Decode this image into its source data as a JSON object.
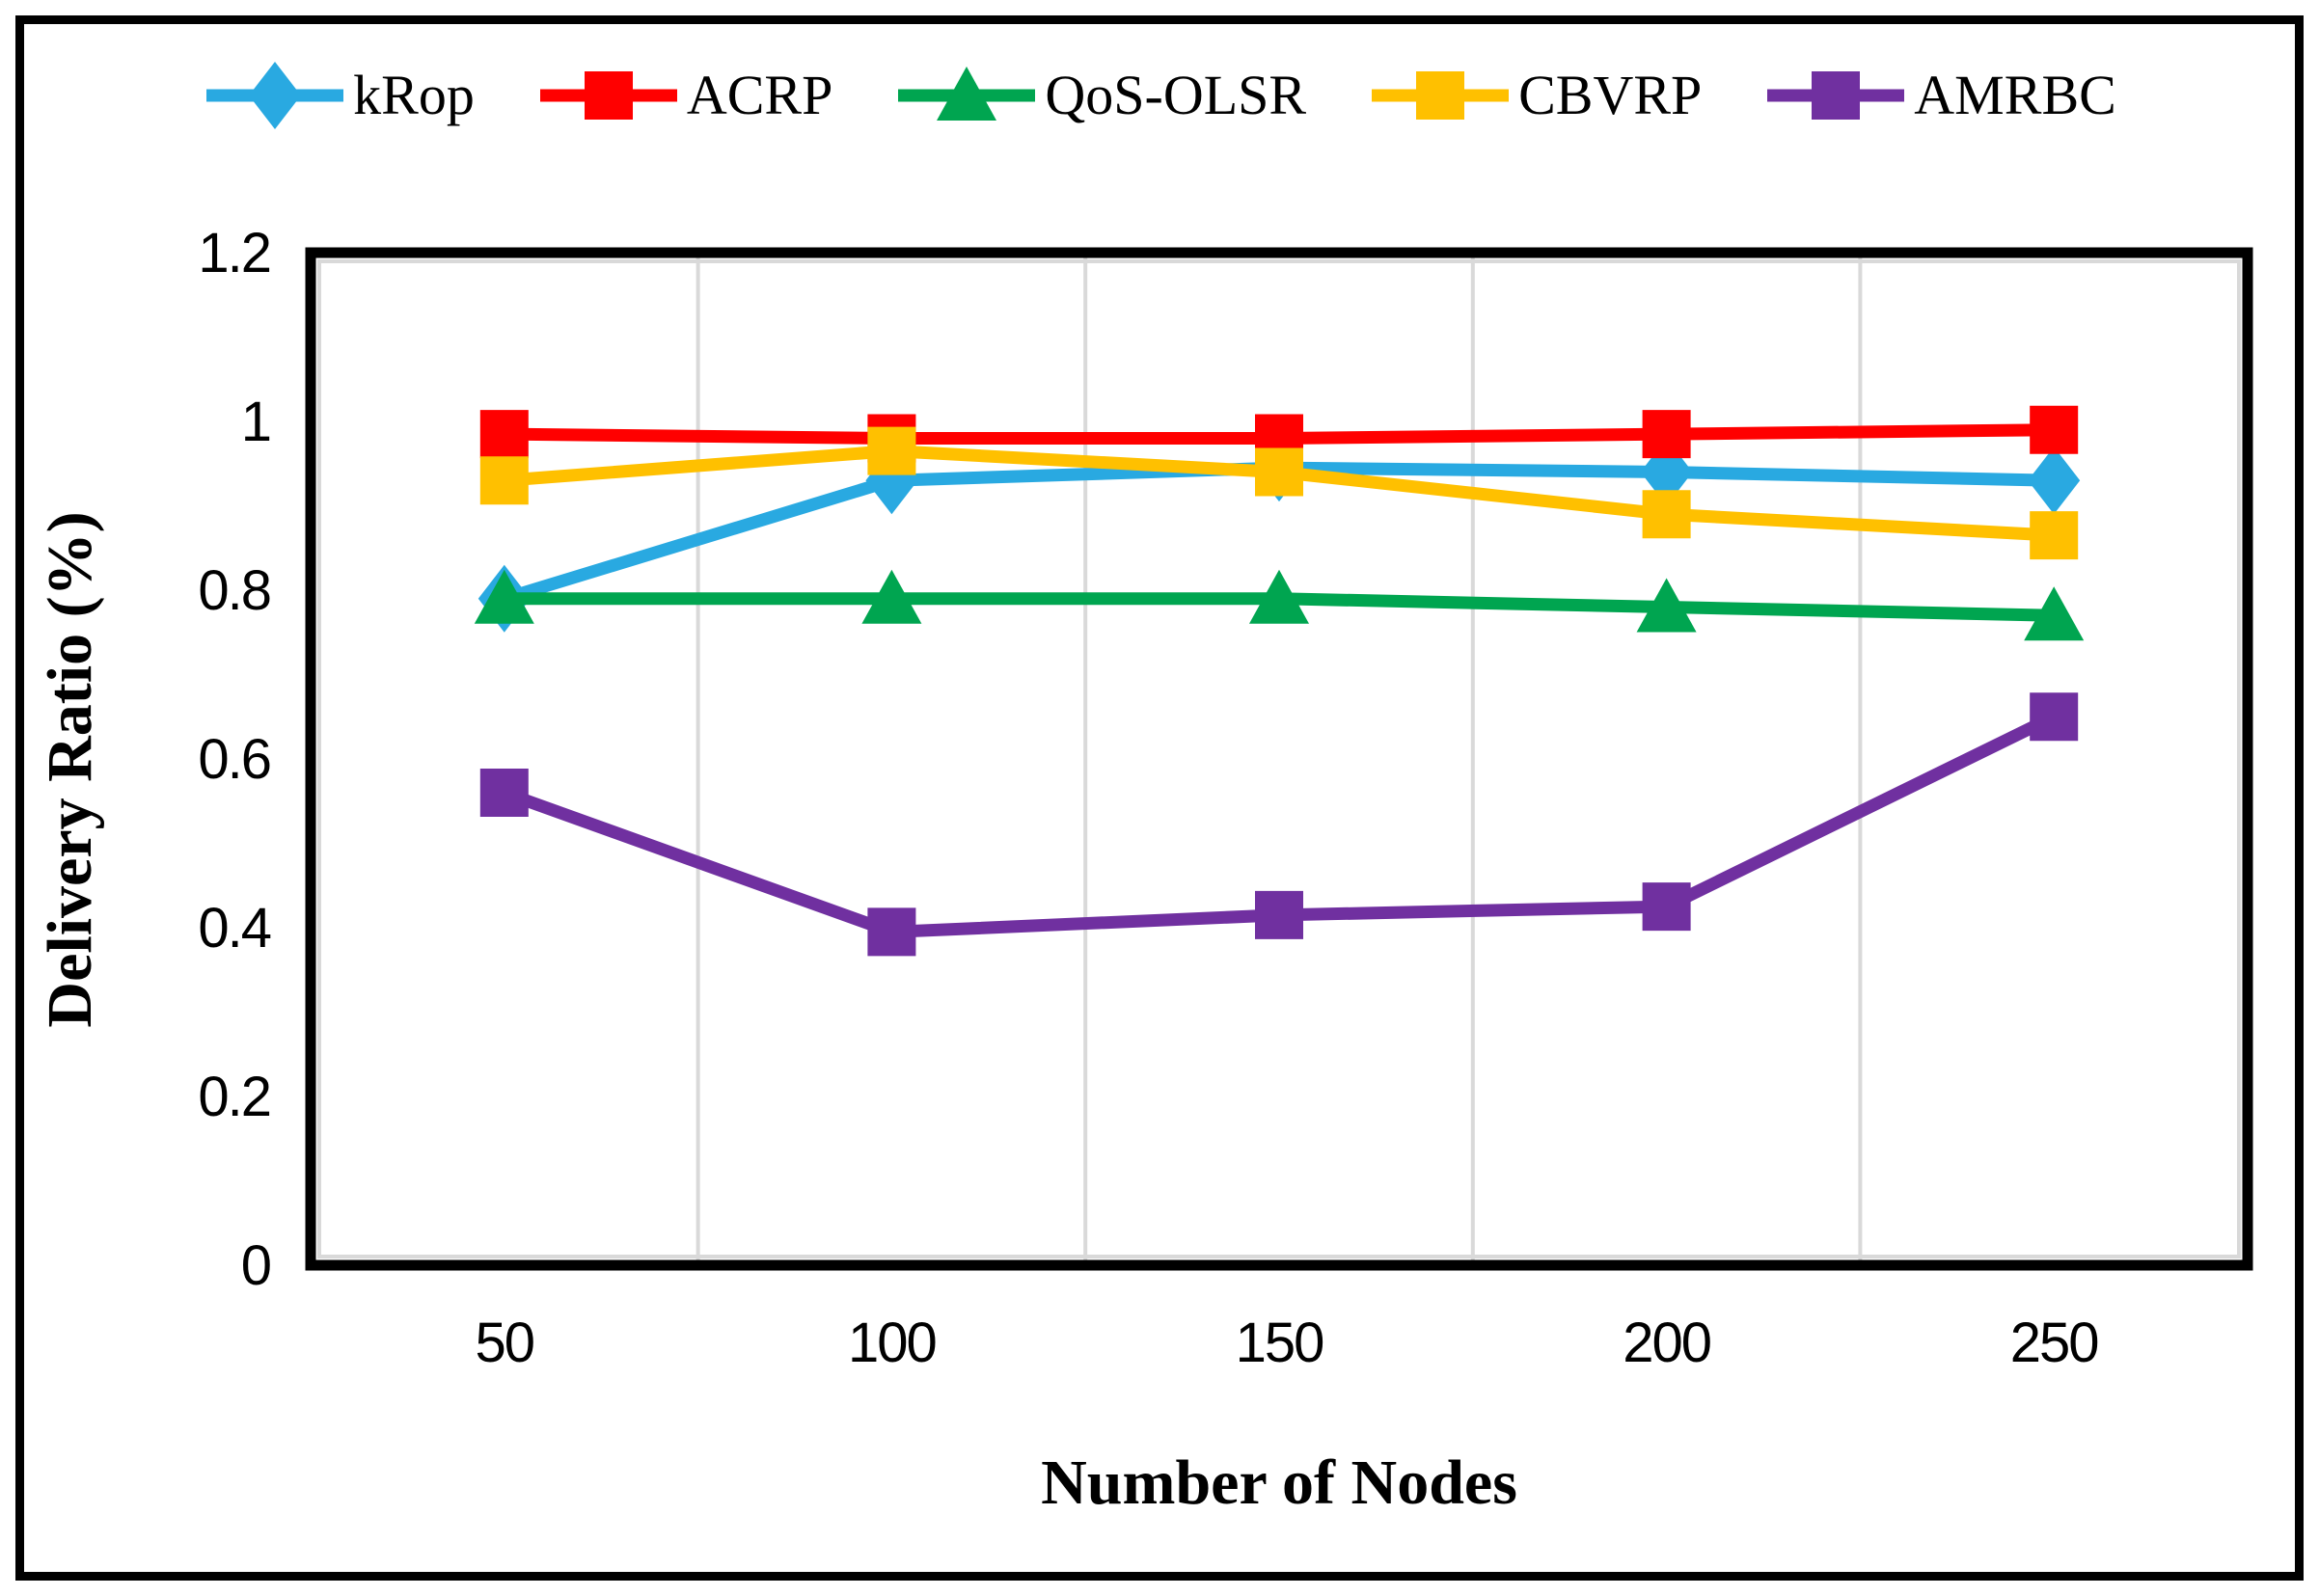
{
  "chart_data": {
    "type": "line",
    "title": "",
    "xlabel": "Number of Nodes",
    "ylabel": "Delivery Ratio (%)",
    "categories": [
      50,
      100,
      150,
      200,
      250
    ],
    "x_tick_labels": [
      "50",
      "100",
      "150",
      "200",
      "250"
    ],
    "y_ticks": [
      0,
      0.2,
      0.4,
      0.6,
      0.8,
      1,
      1.2
    ],
    "y_tick_labels": [
      "0",
      "0.2",
      "0.4",
      "0.6",
      "0.8",
      "1",
      "1.2"
    ],
    "ylim": [
      0,
      1.2
    ],
    "grid": "vertical-only",
    "gridline_color": "#D9D9D9",
    "axis_color": "#000000",
    "legend_position": "top",
    "series": [
      {
        "name": "kRop",
        "color": "#29A9E1",
        "marker": "diamond",
        "values": [
          0.79,
          0.93,
          0.945,
          0.94,
          0.93
        ]
      },
      {
        "name": "ACRP",
        "color": "#FF0000",
        "marker": "square",
        "values": [
          0.985,
          0.98,
          0.98,
          0.985,
          0.99
        ]
      },
      {
        "name": "QoS-OLSR",
        "color": "#00A550",
        "marker": "triangle",
        "values": [
          0.79,
          0.79,
          0.79,
          0.78,
          0.77
        ]
      },
      {
        "name": "CBVRP",
        "color": "#FFC000",
        "marker": "square",
        "values": [
          0.93,
          0.965,
          0.94,
          0.89,
          0.865
        ]
      },
      {
        "name": "AMRBC",
        "color": "#7030A0",
        "marker": "square",
        "values": [
          0.56,
          0.395,
          0.415,
          0.425,
          0.65
        ]
      }
    ]
  }
}
